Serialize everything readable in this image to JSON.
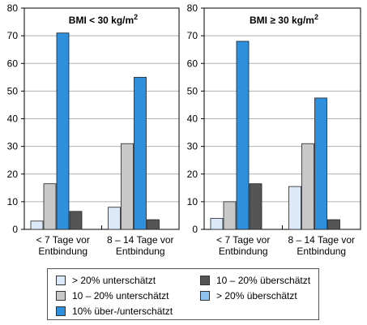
{
  "chart_data": [
    {
      "type": "bar",
      "title": "BMI < 30 kg/m",
      "title_sup": "2",
      "categories": [
        [
          "< 7 Tage vor",
          "Entbindung"
        ],
        [
          "8 – 14 Tage vor",
          "Entbindung"
        ]
      ],
      "ylim": [
        0,
        80
      ],
      "yticks": [
        0,
        10,
        20,
        30,
        40,
        50,
        60,
        70,
        80
      ],
      "grid": true,
      "series": [
        {
          "name": "> 20% unterschätzt",
          "color": "#dce9f8",
          "values": [
            3,
            8
          ]
        },
        {
          "name": "10 – 20% unterschätzt",
          "color": "#c8c8c8",
          "values": [
            16.5,
            31
          ]
        },
        {
          "name": "10% über-/unterschätzt",
          "color": "#2e8fdc",
          "values": [
            71,
            55
          ]
        },
        {
          "name": "10 – 20% überschätzt",
          "color": "#555555",
          "values": [
            6.5,
            3.5
          ]
        }
      ]
    },
    {
      "type": "bar",
      "title": "BMI ≥ 30 kg/m",
      "title_sup": "2",
      "categories": [
        [
          "< 7 Tage vor",
          "Entbindung"
        ],
        [
          "8 – 14 Tage vor",
          "Entbindung"
        ]
      ],
      "ylim": [
        0,
        80
      ],
      "yticks": [
        0,
        10,
        20,
        30,
        40,
        50,
        60,
        70,
        80
      ],
      "grid": true,
      "series": [
        {
          "name": "> 20% unterschätzt",
          "color": "#dce9f8",
          "values": [
            4,
            15.5
          ]
        },
        {
          "name": "10 – 20% unterschätzt",
          "color": "#c8c8c8",
          "values": [
            10,
            31
          ]
        },
        {
          "name": "10% über-/unterschätzt",
          "color": "#2e8fdc",
          "values": [
            68,
            47.5
          ]
        },
        {
          "name": "10 – 20% überschätzt",
          "color": "#555555",
          "values": [
            16.5,
            3.5
          ]
        }
      ]
    }
  ],
  "legend": {
    "items": [
      {
        "label": "> 20% unterschätzt",
        "color": "#dce9f8"
      },
      {
        "label": "10 – 20% überschätzt",
        "color": "#555555"
      },
      {
        "label": "10 – 20% unterschätzt",
        "color": "#c8c8c8"
      },
      {
        "label": "> 20% überschätzt",
        "color": "#8ec3f0"
      },
      {
        "label": "10% über-/unterschätzt",
        "color": "#2e8fdc"
      }
    ]
  }
}
